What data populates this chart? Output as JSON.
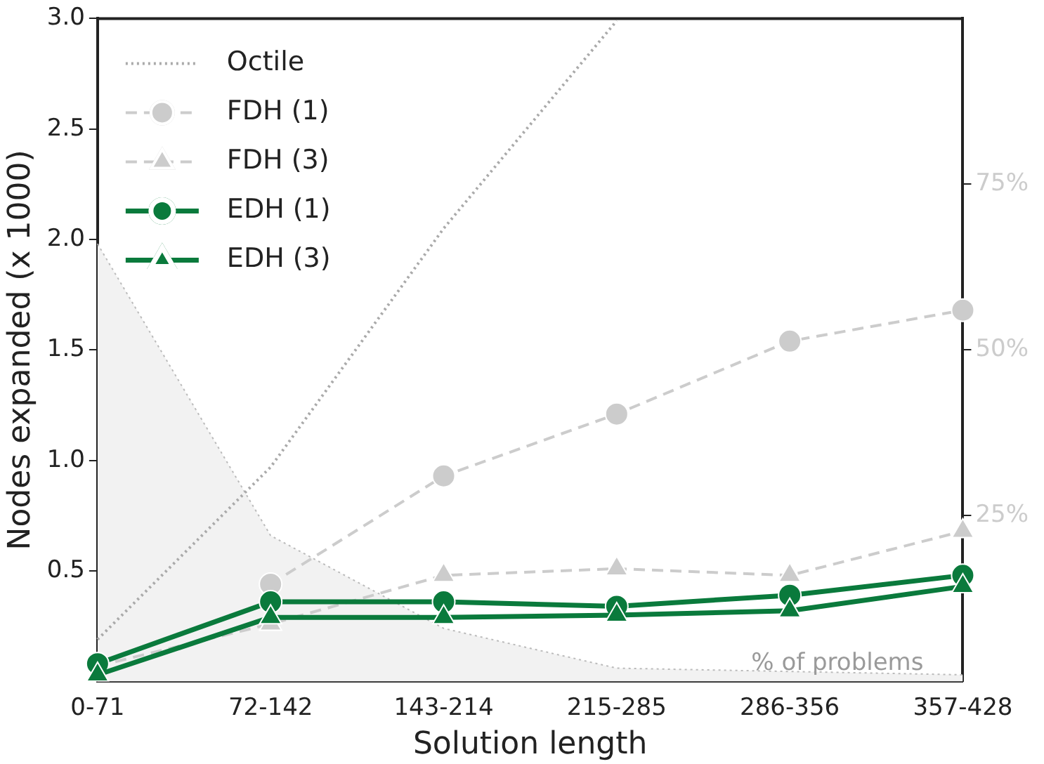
{
  "chart_data": {
    "type": "line",
    "xlabel": "Solution length",
    "ylabel": "Nodes expanded (x 1000)",
    "categories": [
      "0-71",
      "72-142",
      "143-214",
      "215-285",
      "286-356",
      "357-428"
    ],
    "ylim": [
      0,
      3
    ],
    "yticks": [
      0.5,
      {
        "value": 1,
        "label": "1.0"
      },
      1.5,
      {
        "value": 2,
        "label": "2.0"
      },
      2.5,
      {
        "value": 3,
        "label": "3.0"
      }
    ],
    "y2lim": [
      0,
      100
    ],
    "y2ticks": [
      {
        "value": 25,
        "label": "25%"
      },
      {
        "value": 50,
        "label": "50%"
      },
      {
        "value": 75,
        "label": "75%"
      }
    ],
    "grid": false,
    "legend": "top left",
    "annotations": [
      "% of problems"
    ],
    "series": [
      {
        "type": "area",
        "axis": "y2",
        "color": "#f2f2f2",
        "values": [
          66,
          22,
          8,
          2,
          1.5,
          1
        ]
      },
      {
        "name": "Octile",
        "type": "line",
        "color": "#aaaaaa",
        "line_style": "dotted",
        "marker": "none",
        "values": [
          0.19,
          0.97,
          2.05,
          2.99,
          null,
          null
        ]
      },
      {
        "name": "FDH (1)",
        "type": "line",
        "color": "#cccccc",
        "line_style": "dashed",
        "marker": "circle",
        "values": [
          null,
          0.44,
          0.93,
          1.21,
          1.54,
          1.68
        ]
      },
      {
        "name": "FDH (3)",
        "type": "line",
        "color": "#cccccc",
        "line_style": "dashed",
        "marker": "triangle",
        "values": [
          0.07,
          0.26,
          0.48,
          0.51,
          0.48,
          0.68
        ]
      },
      {
        "name": "EDH (1)",
        "type": "line",
        "color": "#0a7a3c",
        "line_style": "solid",
        "marker": "circle",
        "values": [
          0.08,
          0.36,
          0.36,
          0.34,
          0.39,
          0.48
        ]
      },
      {
        "name": "EDH (3)",
        "type": "line",
        "color": "#0a7a3c",
        "line_style": "solid",
        "marker": "triangle",
        "values": [
          0.03,
          0.29,
          0.29,
          0.3,
          0.32,
          0.43
        ]
      }
    ]
  }
}
